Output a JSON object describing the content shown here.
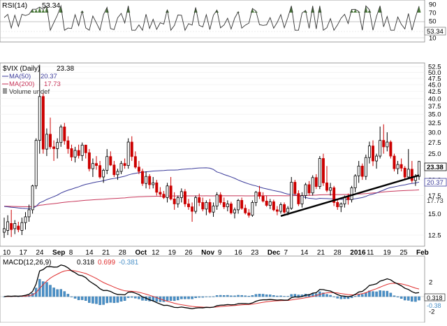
{
  "rsi": {
    "title": "RSI(14)",
    "value_label": "53.34",
    "ticks": [
      "90",
      "70",
      "50",
      "30",
      "10"
    ]
  },
  "price": {
    "title": "$VIX (Daily)",
    "title_value": "23.38",
    "ma50_label": "MA(50)",
    "ma50_value": "20.37",
    "ma200_label": "MA(200)",
    "ma200_value": "17.73",
    "volume_label": "Volume undef",
    "last_tag": "23.38",
    "ma50_tag": "20.37",
    "ma200_tag": "17.73",
    "y_ticks": [
      "52.5",
      "50.0",
      "47.5",
      "45.0",
      "42.5",
      "40.0",
      "37.5",
      "35.0",
      "32.5",
      "30.0",
      "27.5",
      "25.0",
      "22.5",
      "20.0",
      "17.5",
      "15.0",
      "12.5"
    ]
  },
  "x_axis": {
    "labels": [
      "10",
      "17",
      "24",
      "Sep",
      "8",
      "14",
      "21",
      "28",
      "Oct",
      "12",
      "19",
      "26",
      "Nov",
      "9",
      "16",
      "23",
      "Dec",
      "7",
      "14",
      "21",
      "28",
      "2016",
      "11",
      "19",
      "25",
      "Feb"
    ]
  },
  "macd": {
    "title": "MACD(12,26,9)",
    "macd_value": "0.318",
    "signal_value": "0.699",
    "hist_value": "-0.381",
    "ticks": [
      "2",
      "0",
      "-2"
    ],
    "tag_macd": "0.318",
    "tag_hist": "-0.38"
  },
  "colors": {
    "up": "#ffffff",
    "down": "#cc0000",
    "ma50": "#3b3b9a",
    "ma200": "#c8365a",
    "macd_line": "#000000",
    "signal_line": "#e03030",
    "hist": "#4a90c8",
    "rsi_fill": "#4a7a3a",
    "trendline": "#000000"
  },
  "chart_data": {
    "type": "candlestick",
    "ylim": [
      11.5,
      53.5
    ],
    "scale": "log",
    "x_dates": [
      "Aug 10",
      "Aug 17",
      "Aug 24",
      "Sep",
      "Sep 8",
      "Sep 14",
      "Sep 21",
      "Sep 28",
      "Oct",
      "Oct 12",
      "Oct 19",
      "Oct 26",
      "Nov",
      "Nov 9",
      "Nov 16",
      "Nov 23",
      "Dec",
      "Dec 7",
      "Dec 14",
      "Dec 21",
      "Dec 28",
      "2016",
      "Jan 11",
      "Jan 19",
      "Jan 25",
      "Feb"
    ],
    "candles": [
      {
        "o": 12.8,
        "h": 14.5,
        "l": 12.2,
        "c": 13.2
      },
      {
        "o": 13.0,
        "h": 14.8,
        "l": 12.5,
        "c": 14.0
      },
      {
        "o": 13.8,
        "h": 15.5,
        "l": 12.3,
        "c": 13.1
      },
      {
        "o": 13.2,
        "h": 14.2,
        "l": 12.6,
        "c": 13.8
      },
      {
        "o": 13.5,
        "h": 14.0,
        "l": 12.8,
        "c": 13.1
      },
      {
        "o": 13.0,
        "h": 14.5,
        "l": 12.5,
        "c": 13.9
      },
      {
        "o": 13.9,
        "h": 15.2,
        "l": 13.1,
        "c": 14.6
      },
      {
        "o": 14.6,
        "h": 16.2,
        "l": 14.0,
        "c": 15.5
      },
      {
        "o": 15.5,
        "h": 19.2,
        "l": 15.0,
        "c": 19.0
      },
      {
        "o": 19.0,
        "h": 28.5,
        "l": 18.5,
        "c": 28.0
      },
      {
        "o": 28.0,
        "h": 53.3,
        "l": 25.0,
        "c": 40.7
      },
      {
        "o": 40.7,
        "h": 42.0,
        "l": 25.0,
        "c": 26.0
      },
      {
        "o": 26.0,
        "h": 31.0,
        "l": 24.5,
        "c": 29.5
      },
      {
        "o": 29.5,
        "h": 34.0,
        "l": 26.0,
        "c": 26.5
      },
      {
        "o": 26.5,
        "h": 28.0,
        "l": 23.5,
        "c": 26.1
      },
      {
        "o": 26.1,
        "h": 28.5,
        "l": 24.0,
        "c": 27.5
      },
      {
        "o": 27.5,
        "h": 32.0,
        "l": 26.5,
        "c": 31.4
      },
      {
        "o": 31.4,
        "h": 32.5,
        "l": 27.0,
        "c": 27.9
      },
      {
        "o": 27.9,
        "h": 29.0,
        "l": 25.0,
        "c": 26.1
      },
      {
        "o": 26.1,
        "h": 27.0,
        "l": 23.5,
        "c": 24.3
      },
      {
        "o": 24.3,
        "h": 26.5,
        "l": 23.2,
        "c": 25.7
      },
      {
        "o": 25.7,
        "h": 27.0,
        "l": 24.0,
        "c": 24.6
      },
      {
        "o": 24.6,
        "h": 27.5,
        "l": 23.5,
        "c": 26.9
      },
      {
        "o": 26.9,
        "h": 27.0,
        "l": 24.0,
        "c": 25.2
      },
      {
        "o": 25.2,
        "h": 26.0,
        "l": 21.5,
        "c": 22.0
      },
      {
        "o": 22.0,
        "h": 24.0,
        "l": 20.5,
        "c": 23.0
      },
      {
        "o": 23.0,
        "h": 24.5,
        "l": 21.8,
        "c": 22.6
      },
      {
        "o": 22.6,
        "h": 23.5,
        "l": 20.2,
        "c": 20.5
      },
      {
        "o": 20.5,
        "h": 22.0,
        "l": 19.5,
        "c": 21.7
      },
      {
        "o": 21.7,
        "h": 26.0,
        "l": 21.0,
        "c": 24.4
      },
      {
        "o": 24.4,
        "h": 25.5,
        "l": 22.5,
        "c": 22.7
      },
      {
        "o": 22.7,
        "h": 23.5,
        "l": 20.5,
        "c": 20.9
      },
      {
        "o": 20.9,
        "h": 22.0,
        "l": 20.0,
        "c": 21.5
      },
      {
        "o": 21.5,
        "h": 23.5,
        "l": 21.0,
        "c": 23.0
      },
      {
        "o": 23.0,
        "h": 24.0,
        "l": 22.0,
        "c": 22.6
      },
      {
        "o": 22.6,
        "h": 28.5,
        "l": 22.0,
        "c": 27.6
      },
      {
        "o": 27.6,
        "h": 29.0,
        "l": 23.5,
        "c": 24.4
      },
      {
        "o": 24.4,
        "h": 25.5,
        "l": 22.0,
        "c": 22.3
      },
      {
        "o": 22.3,
        "h": 23.5,
        "l": 21.0,
        "c": 21.5
      },
      {
        "o": 21.5,
        "h": 22.0,
        "l": 19.0,
        "c": 19.4
      },
      {
        "o": 19.4,
        "h": 21.5,
        "l": 18.6,
        "c": 20.6
      },
      {
        "o": 20.6,
        "h": 21.0,
        "l": 18.5,
        "c": 19.2
      },
      {
        "o": 19.2,
        "h": 20.5,
        "l": 18.6,
        "c": 19.5
      },
      {
        "o": 19.5,
        "h": 20.0,
        "l": 17.5,
        "c": 18.0
      },
      {
        "o": 18.0,
        "h": 18.8,
        "l": 17.3,
        "c": 17.7
      },
      {
        "o": 17.7,
        "h": 18.2,
        "l": 17.0,
        "c": 17.2
      },
      {
        "o": 17.2,
        "h": 19.5,
        "l": 16.5,
        "c": 19.0
      },
      {
        "o": 19.0,
        "h": 20.5,
        "l": 16.8,
        "c": 17.0
      },
      {
        "o": 17.0,
        "h": 18.0,
        "l": 15.5,
        "c": 16.3
      },
      {
        "o": 16.3,
        "h": 17.5,
        "l": 15.8,
        "c": 17.2
      },
      {
        "o": 17.2,
        "h": 18.6,
        "l": 16.5,
        "c": 18.1
      },
      {
        "o": 18.1,
        "h": 18.5,
        "l": 15.9,
        "c": 16.3
      },
      {
        "o": 16.3,
        "h": 17.0,
        "l": 15.5,
        "c": 15.9
      },
      {
        "o": 15.9,
        "h": 16.5,
        "l": 14.0,
        "c": 15.3
      },
      {
        "o": 15.3,
        "h": 17.5,
        "l": 15.0,
        "c": 17.2
      },
      {
        "o": 17.2,
        "h": 17.8,
        "l": 16.0,
        "c": 16.5
      },
      {
        "o": 16.5,
        "h": 17.2,
        "l": 15.3,
        "c": 15.6
      },
      {
        "o": 15.6,
        "h": 16.8,
        "l": 14.8,
        "c": 16.5
      },
      {
        "o": 16.5,
        "h": 17.0,
        "l": 15.0,
        "c": 15.2
      },
      {
        "o": 15.2,
        "h": 16.5,
        "l": 14.6,
        "c": 16.0
      },
      {
        "o": 16.0,
        "h": 18.0,
        "l": 15.5,
        "c": 17.6
      },
      {
        "o": 17.6,
        "h": 18.0,
        "l": 16.2,
        "c": 16.5
      },
      {
        "o": 16.5,
        "h": 17.2,
        "l": 15.6,
        "c": 15.9
      },
      {
        "o": 15.9,
        "h": 16.8,
        "l": 15.3,
        "c": 16.3
      },
      {
        "o": 16.3,
        "h": 16.6,
        "l": 14.9,
        "c": 15.1
      },
      {
        "o": 15.1,
        "h": 15.8,
        "l": 14.4,
        "c": 15.5
      },
      {
        "o": 15.5,
        "h": 17.0,
        "l": 15.0,
        "c": 16.8
      },
      {
        "o": 16.8,
        "h": 17.2,
        "l": 15.5,
        "c": 15.7
      },
      {
        "o": 15.7,
        "h": 16.2,
        "l": 14.9,
        "c": 15.1
      },
      {
        "o": 15.1,
        "h": 15.6,
        "l": 14.5,
        "c": 14.8
      },
      {
        "o": 14.8,
        "h": 16.8,
        "l": 14.6,
        "c": 16.5
      },
      {
        "o": 16.5,
        "h": 18.2,
        "l": 16.0,
        "c": 18.0
      },
      {
        "o": 18.0,
        "h": 19.0,
        "l": 17.0,
        "c": 17.4
      },
      {
        "o": 17.4,
        "h": 18.0,
        "l": 16.5,
        "c": 16.7
      },
      {
        "o": 16.7,
        "h": 17.5,
        "l": 15.9,
        "c": 16.1
      },
      {
        "o": 16.1,
        "h": 17.0,
        "l": 15.6,
        "c": 16.6
      },
      {
        "o": 16.6,
        "h": 16.9,
        "l": 15.3,
        "c": 15.5
      },
      {
        "o": 15.5,
        "h": 16.0,
        "l": 14.8,
        "c": 15.3
      },
      {
        "o": 15.3,
        "h": 16.5,
        "l": 15.0,
        "c": 16.2
      },
      {
        "o": 16.2,
        "h": 16.5,
        "l": 15.0,
        "c": 15.2
      },
      {
        "o": 15.2,
        "h": 16.0,
        "l": 14.8,
        "c": 15.7
      },
      {
        "o": 15.7,
        "h": 20.5,
        "l": 15.5,
        "c": 19.6
      },
      {
        "o": 19.6,
        "h": 20.0,
        "l": 17.5,
        "c": 17.8
      },
      {
        "o": 17.8,
        "h": 18.3,
        "l": 16.0,
        "c": 16.3
      },
      {
        "o": 16.3,
        "h": 18.0,
        "l": 15.8,
        "c": 17.5
      },
      {
        "o": 17.5,
        "h": 19.5,
        "l": 17.0,
        "c": 19.2
      },
      {
        "o": 19.2,
        "h": 19.8,
        "l": 17.5,
        "c": 17.9
      },
      {
        "o": 17.9,
        "h": 20.8,
        "l": 17.5,
        "c": 20.4
      },
      {
        "o": 20.4,
        "h": 21.0,
        "l": 18.5,
        "c": 18.9
      },
      {
        "o": 18.9,
        "h": 24.5,
        "l": 18.5,
        "c": 24.0
      },
      {
        "o": 24.0,
        "h": 25.0,
        "l": 19.0,
        "c": 19.5
      },
      {
        "o": 19.5,
        "h": 22.5,
        "l": 18.0,
        "c": 18.3
      },
      {
        "o": 18.3,
        "h": 19.5,
        "l": 17.5,
        "c": 18.7
      },
      {
        "o": 18.7,
        "h": 19.0,
        "l": 16.0,
        "c": 16.5
      },
      {
        "o": 16.5,
        "h": 17.0,
        "l": 15.5,
        "c": 15.9
      },
      {
        "o": 15.9,
        "h": 16.5,
        "l": 15.2,
        "c": 16.3
      },
      {
        "o": 16.3,
        "h": 17.5,
        "l": 15.8,
        "c": 17.3
      },
      {
        "o": 17.3,
        "h": 17.8,
        "l": 16.2,
        "c": 16.9
      },
      {
        "o": 16.9,
        "h": 19.0,
        "l": 16.5,
        "c": 18.7
      },
      {
        "o": 18.7,
        "h": 21.0,
        "l": 18.0,
        "c": 20.7
      },
      {
        "o": 20.7,
        "h": 23.5,
        "l": 19.5,
        "c": 22.5
      },
      {
        "o": 22.5,
        "h": 23.0,
        "l": 20.0,
        "c": 20.6
      },
      {
        "o": 20.6,
        "h": 24.8,
        "l": 20.0,
        "c": 24.2
      },
      {
        "o": 24.2,
        "h": 27.7,
        "l": 23.0,
        "c": 26.7
      },
      {
        "o": 26.7,
        "h": 28.0,
        "l": 22.5,
        "c": 23.5
      },
      {
        "o": 23.5,
        "h": 25.0,
        "l": 22.0,
        "c": 24.5
      },
      {
        "o": 24.5,
        "h": 31.5,
        "l": 24.0,
        "c": 28.0
      },
      {
        "o": 28.0,
        "h": 32.1,
        "l": 25.0,
        "c": 26.5
      },
      {
        "o": 26.5,
        "h": 30.0,
        "l": 25.5,
        "c": 27.6
      },
      {
        "o": 27.6,
        "h": 28.0,
        "l": 24.0,
        "c": 24.5
      },
      {
        "o": 24.5,
        "h": 25.0,
        "l": 21.5,
        "c": 22.0
      },
      {
        "o": 22.0,
        "h": 23.5,
        "l": 21.0,
        "c": 22.8
      },
      {
        "o": 22.8,
        "h": 24.0,
        "l": 21.5,
        "c": 22.1
      },
      {
        "o": 22.1,
        "h": 22.5,
        "l": 20.0,
        "c": 20.5
      },
      {
        "o": 20.5,
        "h": 26.0,
        "l": 20.2,
        "c": 21.9
      },
      {
        "o": 21.9,
        "h": 23.5,
        "l": 19.5,
        "c": 19.9
      },
      {
        "o": 19.9,
        "h": 21.0,
        "l": 19.0,
        "c": 20.6
      },
      {
        "o": 20.6,
        "h": 23.5,
        "l": 20.0,
        "c": 23.4
      }
    ],
    "trendline": [
      {
        "i": 78,
        "v": 14.7
      },
      {
        "i": 117,
        "v": 20.8
      }
    ]
  }
}
